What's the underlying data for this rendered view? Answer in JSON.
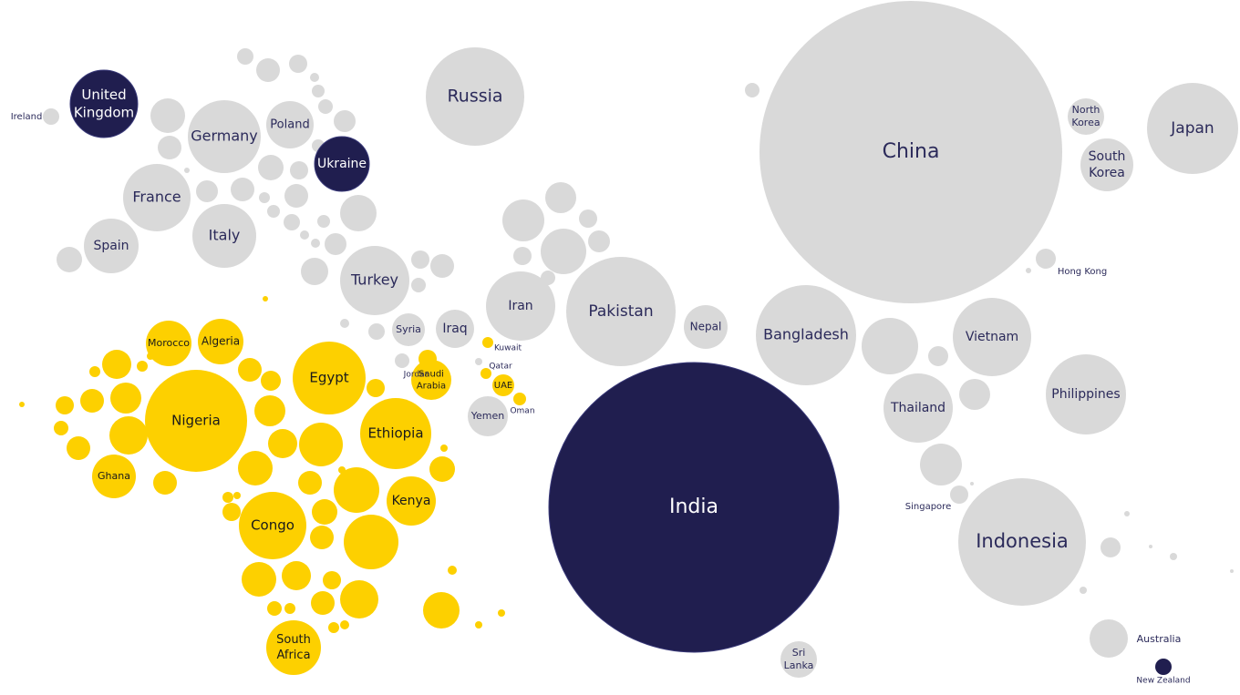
{
  "countries": [
    [
      "United",
      "Kingdom"
    ],
    [
      "Ireland"
    ],
    [
      "Germany"
    ],
    [
      "Poland"
    ],
    [
      "Ukraine"
    ],
    [
      "France"
    ],
    [
      "Italy"
    ],
    [
      "Spain"
    ],
    [
      "Russia"
    ],
    [
      "Turkey"
    ],
    [
      "Syria"
    ],
    [
      "Iraq"
    ],
    [
      "Iran"
    ],
    [
      "Pakistan"
    ],
    [
      "Nepal"
    ],
    [
      "China"
    ],
    [
      "North",
      "Korea"
    ],
    [
      "South",
      "Korea"
    ],
    [
      "Japan"
    ],
    [
      "Hong Kong"
    ],
    [
      "Bangladesh"
    ],
    [
      "Vietnam"
    ],
    [
      "Thailand"
    ],
    [
      "Philippines"
    ],
    [
      "Singapore"
    ],
    [
      "Indonesia"
    ],
    [
      "Australia"
    ],
    [
      "New Zealand"
    ],
    [
      "Sri",
      "Lanka"
    ],
    [
      "India"
    ],
    [
      "Morocco"
    ],
    [
      "Algeria"
    ],
    [
      "Nigeria"
    ],
    [
      "Egypt"
    ],
    [
      "Ethiopia"
    ],
    [
      "Kenya"
    ],
    [
      "Congo"
    ],
    [
      "South",
      "Africa"
    ],
    [
      "Ghana"
    ],
    [
      "Saudi",
      "Arabia"
    ],
    [
      "UAE"
    ],
    [
      "Kuwait"
    ],
    [
      "Qatar"
    ],
    [
      "Oman"
    ],
    [
      "Jordan"
    ],
    [
      "Yemen"
    ]
  ]
}
